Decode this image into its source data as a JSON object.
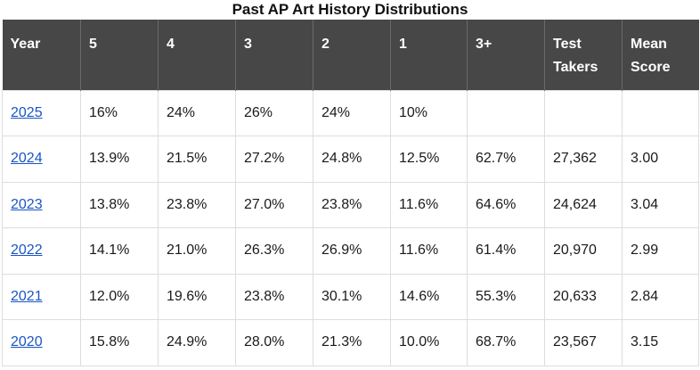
{
  "title": "Past AP Art History Distributions",
  "headers": [
    [
      "Year"
    ],
    [
      "5"
    ],
    [
      "4"
    ],
    [
      "3"
    ],
    [
      "2"
    ],
    [
      "1"
    ],
    [
      "3+"
    ],
    [
      "Test",
      "Takers"
    ],
    [
      "Mean",
      "Score"
    ]
  ],
  "rows": [
    {
      "year": "2025",
      "cells": [
        "16%",
        "24%",
        "26%",
        "24%",
        "10%",
        "",
        "",
        ""
      ]
    },
    {
      "year": "2024",
      "cells": [
        "13.9%",
        "21.5%",
        "27.2%",
        "24.8%",
        "12.5%",
        "62.7%",
        "27,362",
        "3.00"
      ]
    },
    {
      "year": "2023",
      "cells": [
        "13.8%",
        "23.8%",
        "27.0%",
        "23.8%",
        "11.6%",
        "64.6%",
        "24,624",
        "3.04"
      ]
    },
    {
      "year": "2022",
      "cells": [
        "14.1%",
        "21.0%",
        "26.3%",
        "26.9%",
        "11.6%",
        "61.4%",
        "20,970",
        "2.99"
      ]
    },
    {
      "year": "2021",
      "cells": [
        "12.0%",
        "19.6%",
        "23.8%",
        "30.1%",
        "14.6%",
        "55.3%",
        "20,633",
        "2.84"
      ]
    },
    {
      "year": "2020",
      "cells": [
        "15.8%",
        "24.9%",
        "28.0%",
        "21.3%",
        "10.0%",
        "68.7%",
        "23,567",
        "3.15"
      ]
    }
  ],
  "colors": {
    "header_bg": "#474747",
    "header_text": "#ffffff",
    "link": "#1a55c4",
    "border": "#dddddd"
  }
}
